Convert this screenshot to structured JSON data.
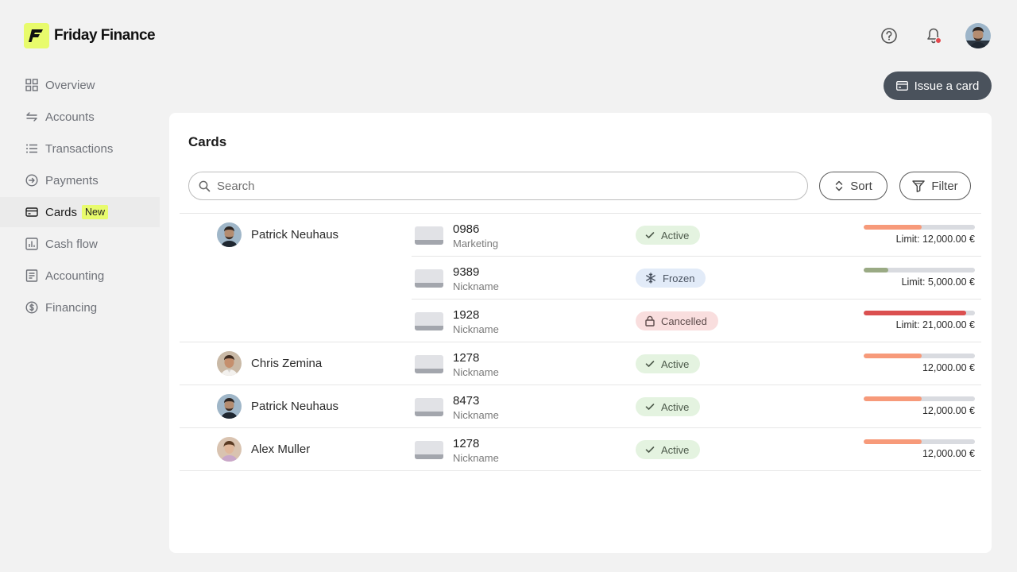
{
  "brand": {
    "name": "Friday Finance",
    "accent": "#e8fb6c"
  },
  "header": {
    "icons": [
      "help-icon",
      "bell-icon",
      "avatar"
    ],
    "notification_color": "#e5484d"
  },
  "sidebar": {
    "items": [
      {
        "label": "Overview",
        "icon": "grid-icon"
      },
      {
        "label": "Accounts",
        "icon": "transfer-arrows-icon"
      },
      {
        "label": "Transactions",
        "icon": "list-icon"
      },
      {
        "label": "Payments",
        "icon": "arrow-circle-icon"
      },
      {
        "label": "Cards",
        "icon": "card-icon",
        "badge": "New",
        "active": true
      },
      {
        "label": "Cash flow",
        "icon": "bar-chart-icon"
      },
      {
        "label": "Accounting",
        "icon": "ledger-icon"
      },
      {
        "label": "Financing",
        "icon": "dollar-circle-icon"
      }
    ]
  },
  "actions": {
    "issue_label": "Issue a card"
  },
  "main": {
    "title": "Cards",
    "search_placeholder": "Search",
    "sort_label": "Sort",
    "filter_label": "Filter"
  },
  "rows": [
    {
      "person": "Patrick Neuhaus",
      "card": "0986",
      "nickname": "Marketing",
      "status": "Active",
      "limit_fraction": 0.52,
      "limit_color": "#f79a7a",
      "limit": "Limit: 12,000.00 €"
    },
    {
      "person": "",
      "card": "9389",
      "nickname": "Nickname",
      "status": "Frozen",
      "limit_fraction": 0.22,
      "limit_color": "#9aaa84",
      "limit": "Limit: 5,000.00 €"
    },
    {
      "person": "",
      "card": "1928",
      "nickname": "Nickname",
      "status": "Cancelled",
      "limit_fraction": 0.92,
      "limit_color": "#db5050",
      "limit": "Limit: 21,000.00 €"
    },
    {
      "person": "Chris Zemina",
      "card": "1278",
      "nickname": "Nickname",
      "status": "Active",
      "limit_fraction": 0.52,
      "limit_color": "#f79a7a",
      "limit": "12,000.00 €"
    },
    {
      "person": "Patrick Neuhaus",
      "card": "8473",
      "nickname": "Nickname",
      "status": "Active",
      "limit_fraction": 0.52,
      "limit_color": "#f79a7a",
      "limit": "12,000.00 €"
    },
    {
      "person": "Alex Muller",
      "card": "1278",
      "nickname": "Nickname",
      "status": "Active",
      "limit_fraction": 0.52,
      "limit_color": "#f79a7a",
      "limit": "12,000.00 €"
    }
  ]
}
